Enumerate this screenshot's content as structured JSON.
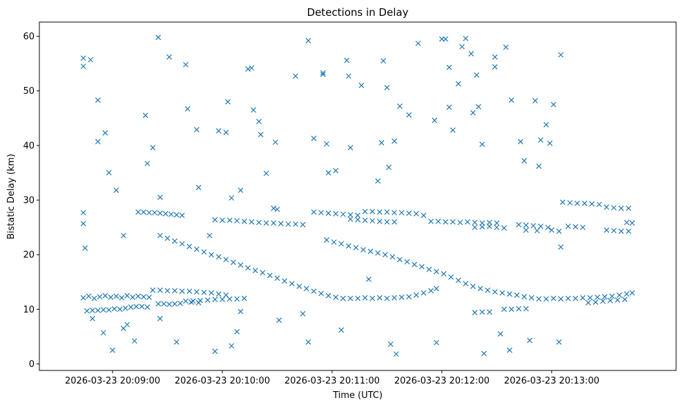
{
  "chart_data": {
    "type": "scatter",
    "title": "Detections in Delay",
    "xlabel": "Time (UTC)",
    "ylabel": "Bistatic Delay (km)",
    "x_unit_note": "x values are seconds after 20:08:00",
    "xlim": [
      20,
      368
    ],
    "ylim": [
      -1.2,
      62.6
    ],
    "grid": false,
    "marker": "x",
    "color": "#1f77b4",
    "x_ticks": [
      {
        "value": 60,
        "label": "2026-03-23 20:09:00"
      },
      {
        "value": 120,
        "label": "2026-03-23 20:10:00"
      },
      {
        "value": 180,
        "label": "2026-03-23 20:11:00"
      },
      {
        "value": 240,
        "label": "2026-03-23 20:12:00"
      },
      {
        "value": 300,
        "label": "2026-03-23 20:13:00"
      }
    ],
    "y_ticks": [
      {
        "value": 0,
        "label": "0"
      },
      {
        "value": 10,
        "label": "10"
      },
      {
        "value": 20,
        "label": "20"
      },
      {
        "value": 30,
        "label": "30"
      },
      {
        "value": 40,
        "label": "40"
      },
      {
        "value": 50,
        "label": "50"
      },
      {
        "value": 60,
        "label": "60"
      }
    ],
    "points": [
      [
        86,
        23.5
      ],
      [
        90,
        23.0
      ],
      [
        94,
        22.5
      ],
      [
        98,
        22.0
      ],
      [
        102,
        21.5
      ],
      [
        106,
        21.0
      ],
      [
        110,
        20.5
      ],
      [
        114,
        20.0
      ],
      [
        118,
        19.6
      ],
      [
        122,
        19.1
      ],
      [
        126,
        18.6
      ],
      [
        130,
        18.1
      ],
      [
        134,
        17.6
      ],
      [
        138,
        17.1
      ],
      [
        142,
        16.7
      ],
      [
        146,
        16.2
      ],
      [
        150,
        15.7
      ],
      [
        154,
        15.2
      ],
      [
        158,
        14.7
      ],
      [
        162,
        14.2
      ],
      [
        166,
        13.8
      ],
      [
        170,
        13.3
      ],
      [
        174,
        12.9
      ],
      [
        178,
        12.5
      ],
      [
        182,
        12.2
      ],
      [
        186,
        12.0
      ],
      [
        190,
        12.0
      ],
      [
        194,
        12.0
      ],
      [
        198,
        12.1
      ],
      [
        202,
        12.0
      ],
      [
        206,
        12.1
      ],
      [
        210,
        12.0
      ],
      [
        214,
        12.1
      ],
      [
        218,
        12.2
      ],
      [
        222,
        12.3
      ],
      [
        226,
        12.6
      ],
      [
        230,
        13.0
      ],
      [
        234,
        13.4
      ],
      [
        237,
        13.8
      ],
      [
        177,
        22.7
      ],
      [
        181,
        22.3
      ],
      [
        185,
        22.0
      ],
      [
        189,
        21.6
      ],
      [
        193,
        21.3
      ],
      [
        197,
        20.9
      ],
      [
        201,
        20.6
      ],
      [
        205,
        20.3
      ],
      [
        209,
        20.0
      ],
      [
        213,
        19.6
      ],
      [
        217,
        19.1
      ],
      [
        221,
        18.7
      ],
      [
        225,
        18.2
      ],
      [
        229,
        17.8
      ],
      [
        233,
        17.3
      ],
      [
        237,
        16.9
      ],
      [
        241,
        16.5
      ],
      [
        245,
        15.9
      ],
      [
        249,
        15.3
      ],
      [
        253,
        14.7
      ],
      [
        257,
        14.2
      ],
      [
        261,
        13.8
      ],
      [
        265,
        13.5
      ],
      [
        269,
        13.2
      ],
      [
        273,
        13.0
      ],
      [
        277,
        12.8
      ],
      [
        281,
        12.6
      ],
      [
        285,
        12.3
      ],
      [
        289,
        12.1
      ],
      [
        293,
        11.9
      ],
      [
        297,
        11.9
      ],
      [
        301,
        12.0
      ],
      [
        305,
        11.9
      ],
      [
        309,
        12.0
      ],
      [
        313,
        12.0
      ],
      [
        317,
        12.1
      ],
      [
        321,
        12.1
      ],
      [
        325,
        12.2
      ],
      [
        329,
        12.3
      ],
      [
        333,
        12.4
      ],
      [
        337,
        12.6
      ],
      [
        341,
        12.8
      ],
      [
        344,
        13.0
      ],
      [
        44,
        12.1
      ],
      [
        47,
        12.4
      ],
      [
        50,
        12.0
      ],
      [
        53,
        12.3
      ],
      [
        56,
        12.5
      ],
      [
        59,
        12.2
      ],
      [
        62,
        12.4
      ],
      [
        65,
        12.1
      ],
      [
        68,
        12.5
      ],
      [
        71,
        12.2
      ],
      [
        74,
        12.4
      ],
      [
        77,
        12.3
      ],
      [
        80,
        12.2
      ],
      [
        82,
        13.5
      ],
      [
        86,
        13.5
      ],
      [
        90,
        13.4
      ],
      [
        94,
        13.4
      ],
      [
        98,
        13.3
      ],
      [
        102,
        13.3
      ],
      [
        106,
        13.2
      ],
      [
        110,
        13.1
      ],
      [
        114,
        13.0
      ],
      [
        118,
        12.8
      ],
      [
        122,
        12.6
      ],
      [
        100,
        11.5
      ],
      [
        104,
        11.5
      ],
      [
        108,
        11.6
      ],
      [
        112,
        11.7
      ],
      [
        116,
        11.8
      ],
      [
        120,
        11.8
      ],
      [
        124,
        11.9
      ],
      [
        128,
        11.9
      ],
      [
        132,
        12.0
      ],
      [
        46,
        9.7
      ],
      [
        49,
        9.8
      ],
      [
        52,
        9.8
      ],
      [
        55,
        9.9
      ],
      [
        58,
        9.9
      ],
      [
        61,
        10.1
      ],
      [
        64,
        10.0
      ],
      [
        67,
        10.2
      ],
      [
        70,
        10.4
      ],
      [
        73,
        10.5
      ],
      [
        76,
        10.5
      ],
      [
        79,
        10.4
      ],
      [
        85,
        11.0
      ],
      [
        88,
        11.0
      ],
      [
        91,
        10.9
      ],
      [
        94,
        11.0
      ],
      [
        97,
        11.1
      ],
      [
        103,
        11.3
      ],
      [
        107,
        11.2
      ],
      [
        116,
        26.4
      ],
      [
        120,
        26.3
      ],
      [
        124,
        26.3
      ],
      [
        128,
        26.2
      ],
      [
        132,
        26.1
      ],
      [
        136,
        26.0
      ],
      [
        140,
        25.9
      ],
      [
        144,
        25.8
      ],
      [
        148,
        25.8
      ],
      [
        152,
        25.7
      ],
      [
        156,
        25.6
      ],
      [
        160,
        25.6
      ],
      [
        164,
        25.5
      ],
      [
        148,
        28.5
      ],
      [
        150,
        28.3
      ],
      [
        74,
        27.8
      ],
      [
        77,
        27.8
      ],
      [
        80,
        27.7
      ],
      [
        83,
        27.7
      ],
      [
        86,
        27.6
      ],
      [
        89,
        27.5
      ],
      [
        92,
        27.4
      ],
      [
        95,
        27.3
      ],
      [
        98,
        27.2
      ],
      [
        170,
        27.8
      ],
      [
        174,
        27.7
      ],
      [
        178,
        27.6
      ],
      [
        182,
        27.5
      ],
      [
        186,
        27.4
      ],
      [
        190,
        27.3
      ],
      [
        194,
        27.2
      ],
      [
        190,
        26.5
      ],
      [
        194,
        26.4
      ],
      [
        198,
        26.3
      ],
      [
        202,
        26.2
      ],
      [
        206,
        26.1
      ],
      [
        210,
        26.0
      ],
      [
        214,
        26.0
      ],
      [
        198,
        27.9
      ],
      [
        202,
        27.9
      ],
      [
        206,
        27.8
      ],
      [
        210,
        27.8
      ],
      [
        214,
        27.7
      ],
      [
        218,
        27.7
      ],
      [
        222,
        27.6
      ],
      [
        226,
        27.5
      ],
      [
        230,
        27.2
      ],
      [
        234,
        26.1
      ],
      [
        238,
        26.1
      ],
      [
        242,
        26.0
      ],
      [
        246,
        26.0
      ],
      [
        250,
        25.9
      ],
      [
        254,
        26.0
      ],
      [
        258,
        25.9
      ],
      [
        262,
        25.8
      ],
      [
        266,
        25.9
      ],
      [
        270,
        25.8
      ],
      [
        258,
        25.0
      ],
      [
        262,
        25.1
      ],
      [
        266,
        25.2
      ],
      [
        270,
        25.0
      ],
      [
        274,
        24.9
      ],
      [
        282,
        25.5
      ],
      [
        286,
        25.4
      ],
      [
        290,
        25.3
      ],
      [
        294,
        25.2
      ],
      [
        298,
        25.0
      ],
      [
        286,
        24.5
      ],
      [
        292,
        24.4
      ],
      [
        300,
        24.5
      ],
      [
        304,
        24.3
      ],
      [
        306,
        29.6
      ],
      [
        310,
        29.5
      ],
      [
        314,
        29.4
      ],
      [
        318,
        29.4
      ],
      [
        322,
        29.3
      ],
      [
        326,
        29.2
      ],
      [
        309,
        25.2
      ],
      [
        313,
        25.1
      ],
      [
        317,
        25.0
      ],
      [
        330,
        28.7
      ],
      [
        334,
        28.6
      ],
      [
        338,
        28.5
      ],
      [
        342,
        28.5
      ],
      [
        330,
        24.5
      ],
      [
        334,
        24.4
      ],
      [
        338,
        24.3
      ],
      [
        342,
        24.3
      ],
      [
        344,
        25.8
      ],
      [
        341,
        25.9
      ],
      [
        258,
        9.4
      ],
      [
        262,
        9.5
      ],
      [
        266,
        9.5
      ],
      [
        274,
        10.0
      ],
      [
        278,
        10.0
      ],
      [
        282,
        10.1
      ],
      [
        286,
        10.1
      ],
      [
        320,
        11.2
      ],
      [
        324,
        11.3
      ],
      [
        328,
        11.5
      ],
      [
        332,
        11.6
      ],
      [
        336,
        11.7
      ],
      [
        340,
        11.8
      ],
      [
        44,
        56
      ],
      [
        44,
        54.5
      ],
      [
        44,
        27.7
      ],
      [
        44,
        25.7
      ],
      [
        45,
        21.2
      ],
      [
        48,
        55.7
      ],
      [
        52,
        48.3
      ],
      [
        52,
        40.7
      ],
      [
        56,
        42.3
      ],
      [
        58,
        35
      ],
      [
        60,
        2.5
      ],
      [
        62,
        31.8
      ],
      [
        66,
        23.5
      ],
      [
        66,
        6.5
      ],
      [
        78,
        45.5
      ],
      [
        79,
        36.7
      ],
      [
        82,
        39.6
      ],
      [
        85,
        59.8
      ],
      [
        86,
        30.5
      ],
      [
        91,
        56.2
      ],
      [
        95,
        4
      ],
      [
        100,
        54.8
      ],
      [
        101,
        46.7
      ],
      [
        106,
        42.9
      ],
      [
        107,
        32.3
      ],
      [
        113,
        23.5
      ],
      [
        116,
        2.3
      ],
      [
        118,
        42.7
      ],
      [
        122,
        42.4
      ],
      [
        123,
        48
      ],
      [
        125,
        30.4
      ],
      [
        125,
        3.3
      ],
      [
        130,
        31.8
      ],
      [
        134,
        54
      ],
      [
        136,
        54.2
      ],
      [
        137,
        46.5
      ],
      [
        140,
        44.4
      ],
      [
        141,
        42
      ],
      [
        144,
        34.9
      ],
      [
        149,
        40.6
      ],
      [
        151,
        8
      ],
      [
        160,
        52.7
      ],
      [
        164,
        9.2
      ],
      [
        167,
        59.2
      ],
      [
        167,
        4
      ],
      [
        170,
        41.3
      ],
      [
        175,
        53.3
      ],
      [
        175,
        53
      ],
      [
        177,
        40.3
      ],
      [
        178,
        35
      ],
      [
        182,
        35.4
      ],
      [
        185,
        6.2
      ],
      [
        188,
        55.6
      ],
      [
        189,
        52.7
      ],
      [
        190,
        39.6
      ],
      [
        196,
        51
      ],
      [
        200,
        15.5
      ],
      [
        205,
        33.5
      ],
      [
        207,
        40.5
      ],
      [
        208,
        55.5
      ],
      [
        210,
        50.6
      ],
      [
        211,
        36
      ],
      [
        212,
        3.6
      ],
      [
        214,
        40.8
      ],
      [
        215,
        1.8
      ],
      [
        217,
        47.2
      ],
      [
        222,
        45.6
      ],
      [
        227,
        58.7
      ],
      [
        236,
        44.6
      ],
      [
        237,
        3.9
      ],
      [
        240,
        59.5
      ],
      [
        242,
        59.5
      ],
      [
        244,
        54.3
      ],
      [
        244,
        47
      ],
      [
        246,
        42.8
      ],
      [
        249,
        51.3
      ],
      [
        251,
        58.1
      ],
      [
        253,
        59.6
      ],
      [
        256,
        56.8
      ],
      [
        257,
        46
      ],
      [
        259,
        52.9
      ],
      [
        260,
        47.1
      ],
      [
        262,
        40.2
      ],
      [
        263,
        1.9
      ],
      [
        269,
        56.2
      ],
      [
        269,
        54.4
      ],
      [
        272,
        5.5
      ],
      [
        275,
        58
      ],
      [
        277,
        2.5
      ],
      [
        278,
        48.3
      ],
      [
        283,
        40.7
      ],
      [
        285,
        37.2
      ],
      [
        288,
        4.3
      ],
      [
        291,
        48.2
      ],
      [
        293,
        36.2
      ],
      [
        294,
        41
      ],
      [
        297,
        43.8
      ],
      [
        299,
        40.4
      ],
      [
        301,
        47.5
      ],
      [
        304,
        4
      ],
      [
        305,
        56.6
      ],
      [
        305,
        21.4
      ],
      [
        130,
        9.6
      ],
      [
        128,
        5.9
      ],
      [
        55,
        5.7
      ],
      [
        49,
        8.3
      ],
      [
        68,
        7.2
      ],
      [
        86,
        8.3
      ],
      [
        72,
        4.2
      ]
    ]
  }
}
